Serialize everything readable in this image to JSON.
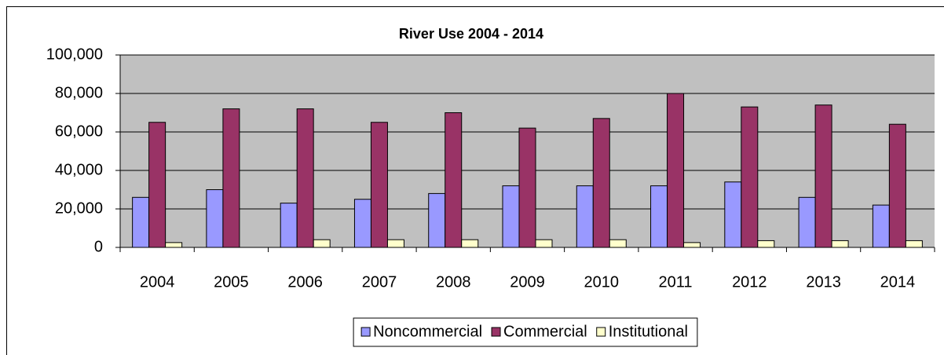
{
  "chart_data": {
    "type": "bar",
    "title": "River Use 2004 - 2014",
    "categories": [
      "2004",
      "2005",
      "2006",
      "2007",
      "2008",
      "2009",
      "2010",
      "2011",
      "2012",
      "2013",
      "2014"
    ],
    "series": [
      {
        "name": "Noncommercial",
        "color": "#9999ff",
        "values": [
          26000,
          30000,
          23000,
          25000,
          28000,
          32000,
          32000,
          32000,
          34000,
          26000,
          22000
        ]
      },
      {
        "name": "Commercial",
        "color": "#993366",
        "values": [
          65000,
          72000,
          72000,
          65000,
          70000,
          62000,
          67000,
          80000,
          73000,
          74000,
          64000
        ]
      },
      {
        "name": "Institutional",
        "color": "#ffffcc",
        "values": [
          2500,
          0,
          4000,
          4000,
          4000,
          4000,
          4000,
          2500,
          3500,
          3500,
          3500
        ]
      }
    ],
    "ylim": [
      0,
      100000
    ],
    "yticks": [
      0,
      {
        "value": 20000,
        "label": "20,000"
      },
      {
        "value": 40000,
        "label": "40,000"
      },
      {
        "value": 60000,
        "label": "60,000"
      },
      {
        "value": 80000,
        "label": "80,000"
      },
      {
        "value": 100000,
        "label": "100,000"
      }
    ],
    "grid": true,
    "plot_background": "#c0c0c0",
    "legend": "bottom"
  }
}
